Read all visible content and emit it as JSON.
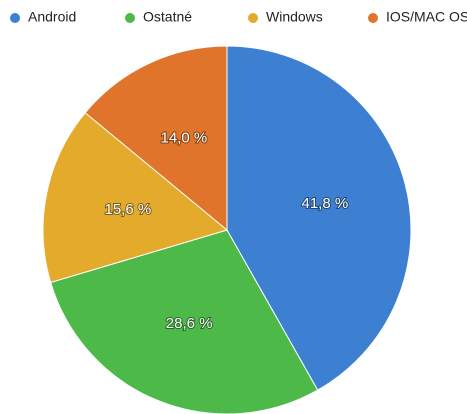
{
  "chart_data": {
    "type": "pie",
    "categories": [
      "Android",
      "Ostatné",
      "Windows",
      "IOS/MAC OS"
    ],
    "values": [
      41.8,
      28.6,
      15.6,
      14.0
    ],
    "value_labels": [
      "41,8 %",
      "28,6 %",
      "15,6 %",
      "14,0 %"
    ],
    "colors": [
      "#3d80d2",
      "#4cb948",
      "#e4aa2c",
      "#e0742a"
    ],
    "legend": "top"
  }
}
